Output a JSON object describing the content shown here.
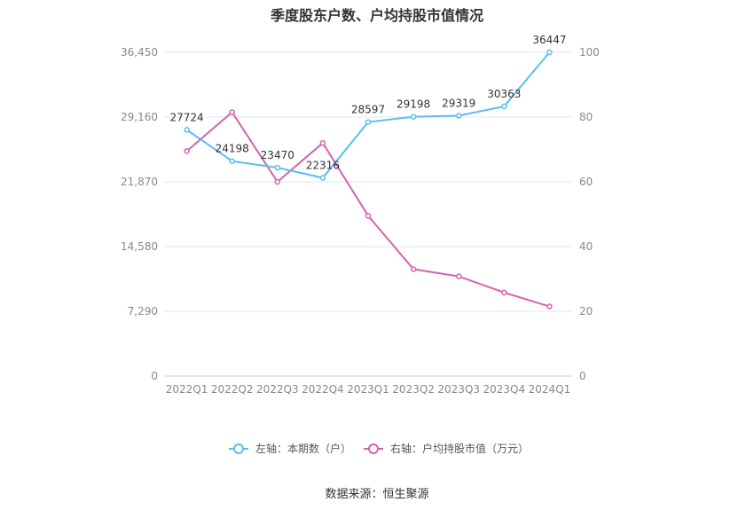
{
  "chart_data": {
    "type": "line",
    "title": "季度股东户数、户均持股市值情况",
    "categories": [
      "2022Q1",
      "2022Q2",
      "2022Q3",
      "2022Q4",
      "2023Q1",
      "2023Q2",
      "2023Q3",
      "2023Q4",
      "2024Q1"
    ],
    "series": [
      {
        "name": "左轴：本期数（户）",
        "axis": "left",
        "color": "#5bbdf0",
        "values": [
          27724,
          24198,
          23470,
          22316,
          28597,
          29198,
          29319,
          30363,
          36447
        ],
        "labels": [
          "27724",
          "24198",
          "23470",
          "22316",
          "28597",
          "29198",
          "29319",
          "30363",
          "36447"
        ]
      },
      {
        "name": "右轴：户均持股市值（万元）",
        "axis": "right",
        "color": "#d264ad",
        "values": [
          69.5,
          81.5,
          60,
          72,
          49.5,
          33,
          30.8,
          25.8,
          21.5
        ]
      }
    ],
    "left_axis": {
      "ticks": [
        "0",
        "7,290",
        "14,580",
        "21,870",
        "29,160",
        "36,450"
      ],
      "range": [
        0,
        36450
      ]
    },
    "right_axis": {
      "ticks": [
        "0",
        "20",
        "40",
        "60",
        "80",
        "100"
      ],
      "range": [
        0,
        100
      ]
    },
    "grid": true,
    "legend_position": "bottom"
  },
  "source": "数据来源：恒生聚源"
}
